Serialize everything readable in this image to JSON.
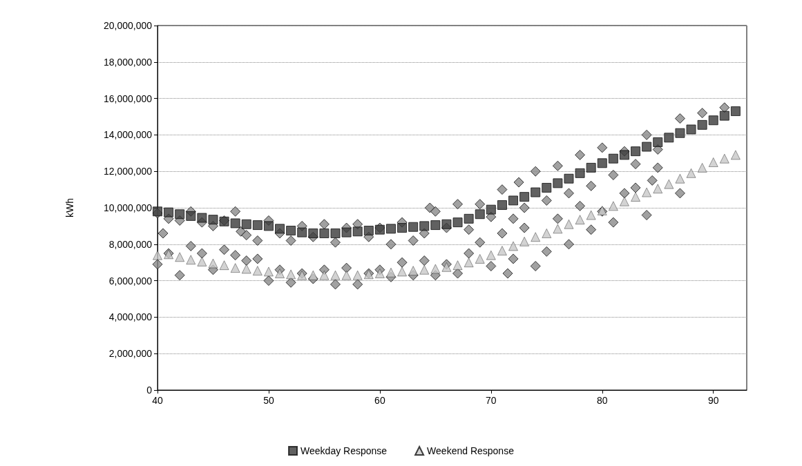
{
  "chart_data": {
    "type": "scatter",
    "ylabel": "kWh",
    "xlim": [
      40,
      93
    ],
    "xticks": [
      40,
      50,
      60,
      70,
      80,
      90
    ],
    "ylim": [
      0,
      20000000
    ],
    "yticks": [
      0,
      {
        "value": 2000000,
        "label": "2,000,000"
      },
      {
        "value": 4000000,
        "label": "4,000,000"
      },
      {
        "value": 6000000,
        "label": "6,000,000"
      },
      {
        "value": 8000000,
        "label": "8,000,000"
      },
      {
        "value": 10000000,
        "label": "10,000,000"
      },
      {
        "value": 12000000,
        "label": "12,000,000"
      },
      {
        "value": 14000000,
        "label": "14,000,000"
      },
      {
        "value": 16000000,
        "label": "16,000,000"
      },
      {
        "value": 18000000,
        "label": "18,000,000"
      },
      {
        "value": 20000000,
        "label": "20,000,000"
      }
    ],
    "grid": "y",
    "legend": "bottom",
    "series": [
      {
        "color": "#8a8a8a",
        "marker": "diamond",
        "x": [
          40,
          41,
          42,
          43,
          44,
          45,
          46,
          47,
          47.5,
          48,
          49,
          50,
          51,
          52,
          53,
          54,
          55,
          56,
          57,
          58,
          59,
          60,
          61,
          62,
          63,
          64,
          64.5,
          65,
          66,
          67,
          68,
          69,
          70,
          71,
          72,
          72.5,
          73,
          74,
          75,
          76,
          77,
          78,
          79,
          80,
          81,
          82,
          83,
          84,
          85,
          87,
          89,
          91,
          40,
          40.5,
          41,
          42,
          43,
          44,
          45,
          46,
          47,
          48,
          49,
          50,
          51,
          52,
          53,
          54,
          55,
          56,
          57,
          58,
          59,
          60,
          61,
          62,
          63,
          64,
          65,
          66,
          67,
          68,
          69,
          70,
          71,
          71.5,
          72,
          73,
          74,
          75,
          76,
          77,
          78,
          79,
          80,
          81,
          82,
          83,
          84,
          84.5,
          85,
          87
        ],
        "values": [
          9700000,
          9400000,
          9300000,
          9800000,
          9200000,
          9000000,
          9300000,
          9800000,
          8700000,
          8500000,
          8200000,
          9300000,
          8600000,
          8200000,
          9000000,
          8400000,
          9100000,
          8100000,
          8900000,
          9100000,
          8400000,
          8900000,
          8000000,
          9200000,
          8200000,
          8600000,
          10000000,
          9800000,
          8900000,
          10200000,
          8800000,
          10200000,
          9500000,
          11000000,
          9400000,
          11400000,
          10000000,
          12000000,
          10400000,
          12300000,
          10800000,
          12900000,
          11200000,
          13300000,
          11800000,
          13100000,
          12400000,
          14000000,
          13200000,
          14900000,
          15200000,
          15500000,
          6900000,
          8600000,
          7500000,
          6300000,
          7900000,
          7500000,
          6600000,
          7700000,
          7400000,
          7100000,
          7200000,
          6000000,
          6600000,
          5900000,
          6400000,
          6100000,
          6600000,
          5800000,
          6700000,
          5800000,
          6400000,
          6600000,
          6200000,
          7000000,
          6300000,
          7100000,
          6300000,
          6900000,
          6400000,
          7500000,
          8100000,
          6800000,
          8600000,
          6400000,
          7200000,
          8900000,
          6800000,
          7600000,
          9400000,
          8000000,
          10100000,
          8800000,
          9800000,
          9200000,
          10800000,
          11100000,
          9600000,
          11500000,
          12200000,
          10800000
        ]
      },
      {
        "name": "Weekday Response",
        "color": "#3a3a3a",
        "marker": "square",
        "x": [
          40,
          41,
          42,
          43,
          44,
          45,
          46,
          47,
          48,
          49,
          50,
          51,
          52,
          53,
          54,
          55,
          56,
          57,
          58,
          59,
          60,
          61,
          62,
          63,
          64,
          65,
          66,
          67,
          68,
          69,
          70,
          71,
          72,
          73,
          74,
          75,
          76,
          77,
          78,
          79,
          80,
          81,
          82,
          83,
          84,
          85,
          86,
          87,
          88,
          89,
          90,
          91,
          92
        ],
        "values": [
          9800000,
          9750000,
          9650000,
          9550000,
          9450000,
          9350000,
          9250000,
          9150000,
          9100000,
          9050000,
          9000000,
          8850000,
          8750000,
          8650000,
          8600000,
          8600000,
          8600000,
          8650000,
          8700000,
          8750000,
          8800000,
          8850000,
          8900000,
          8950000,
          9000000,
          9050000,
          9100000,
          9200000,
          9400000,
          9650000,
          9900000,
          10150000,
          10400000,
          10600000,
          10850000,
          11100000,
          11350000,
          11600000,
          11900000,
          12200000,
          12450000,
          12700000,
          12900000,
          13100000,
          13350000,
          13600000,
          13850000,
          14100000,
          14300000,
          14550000,
          14800000,
          15050000,
          15300000
        ]
      },
      {
        "name": "Weekend Response",
        "color": "#c8c8c8",
        "marker": "triangle",
        "x": [
          40,
          41,
          42,
          43,
          44,
          45,
          46,
          47,
          48,
          49,
          50,
          51,
          52,
          53,
          54,
          55,
          56,
          57,
          58,
          59,
          60,
          61,
          62,
          63,
          64,
          65,
          66,
          67,
          68,
          69,
          70,
          71,
          72,
          73,
          74,
          75,
          76,
          77,
          78,
          79,
          80,
          81,
          82,
          83,
          84,
          85,
          86,
          87,
          88,
          89,
          90,
          91,
          92
        ],
        "values": [
          7400000,
          7450000,
          7300000,
          7150000,
          7050000,
          6950000,
          6850000,
          6700000,
          6650000,
          6550000,
          6500000,
          6400000,
          6350000,
          6300000,
          6300000,
          6300000,
          6300000,
          6300000,
          6300000,
          6350000,
          6400000,
          6450000,
          6500000,
          6550000,
          6600000,
          6650000,
          6750000,
          6850000,
          7000000,
          7200000,
          7400000,
          7650000,
          7900000,
          8150000,
          8400000,
          8600000,
          8850000,
          9100000,
          9350000,
          9600000,
          9850000,
          10100000,
          10350000,
          10600000,
          10850000,
          11050000,
          11300000,
          11600000,
          11900000,
          12200000,
          12500000,
          12700000,
          12900000
        ]
      }
    ]
  }
}
